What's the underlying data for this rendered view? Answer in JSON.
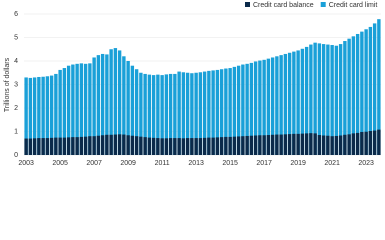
{
  "chart_data": {
    "type": "bar",
    "ylabel": "Trillions of dollars",
    "categories": [
      "2003",
      null,
      null,
      null,
      null,
      null,
      null,
      null,
      "2005",
      null,
      null,
      null,
      null,
      null,
      null,
      null,
      "2007",
      null,
      null,
      null,
      null,
      null,
      null,
      null,
      "2009",
      null,
      null,
      null,
      null,
      null,
      null,
      null,
      "2011",
      null,
      null,
      null,
      null,
      null,
      null,
      null,
      "2013",
      null,
      null,
      null,
      null,
      null,
      null,
      null,
      "2015",
      null,
      null,
      null,
      null,
      null,
      null,
      null,
      "2017",
      null,
      null,
      null,
      null,
      null,
      null,
      null,
      "2019",
      null,
      null,
      null,
      null,
      null,
      null,
      null,
      "2021",
      null,
      null,
      null,
      null,
      null,
      null,
      null,
      "2023",
      null,
      null,
      null
    ],
    "series": [
      {
        "name": "Credit card limit",
        "color": "#1aa0d8",
        "values": [
          3.3,
          3.28,
          3.3,
          3.32,
          3.33,
          3.35,
          3.38,
          3.45,
          3.62,
          3.7,
          3.8,
          3.85,
          3.88,
          3.9,
          3.88,
          3.9,
          4.15,
          4.25,
          4.3,
          4.28,
          4.5,
          4.55,
          4.45,
          4.2,
          4.0,
          3.8,
          3.65,
          3.5,
          3.45,
          3.42,
          3.4,
          3.42,
          3.4,
          3.43,
          3.45,
          3.45,
          3.55,
          3.52,
          3.5,
          3.48,
          3.5,
          3.52,
          3.55,
          3.58,
          3.6,
          3.62,
          3.65,
          3.68,
          3.7,
          3.75,
          3.8,
          3.85,
          3.88,
          3.92,
          3.98,
          4.02,
          4.05,
          4.1,
          4.15,
          4.2,
          4.25,
          4.3,
          4.35,
          4.4,
          4.45,
          4.52,
          4.6,
          4.7,
          4.78,
          4.75,
          4.72,
          4.7,
          4.68,
          4.65,
          4.72,
          4.85,
          4.95,
          5.05,
          5.15,
          5.25,
          5.35,
          5.45,
          5.6,
          5.78
        ]
      },
      {
        "name": "Credit card balance",
        "color": "#0b2a4a",
        "values": [
          0.7,
          0.7,
          0.71,
          0.72,
          0.72,
          0.72,
          0.73,
          0.74,
          0.74,
          0.74,
          0.75,
          0.76,
          0.76,
          0.77,
          0.78,
          0.8,
          0.8,
          0.82,
          0.84,
          0.86,
          0.86,
          0.87,
          0.88,
          0.87,
          0.84,
          0.82,
          0.8,
          0.78,
          0.76,
          0.74,
          0.73,
          0.72,
          0.71,
          0.71,
          0.72,
          0.72,
          0.72,
          0.71,
          0.72,
          0.72,
          0.72,
          0.72,
          0.73,
          0.74,
          0.74,
          0.75,
          0.76,
          0.77,
          0.77,
          0.78,
          0.79,
          0.8,
          0.81,
          0.82,
          0.83,
          0.84,
          0.84,
          0.85,
          0.86,
          0.87,
          0.87,
          0.88,
          0.89,
          0.9,
          0.9,
          0.91,
          0.92,
          0.93,
          0.92,
          0.85,
          0.83,
          0.82,
          0.8,
          0.81,
          0.83,
          0.86,
          0.88,
          0.92,
          0.94,
          0.98,
          0.99,
          1.02,
          1.04,
          1.08
        ]
      }
    ],
    "ylim": [
      0,
      6
    ],
    "yticks": [
      0,
      1,
      2,
      3,
      4,
      5,
      6
    ],
    "grid": true
  }
}
